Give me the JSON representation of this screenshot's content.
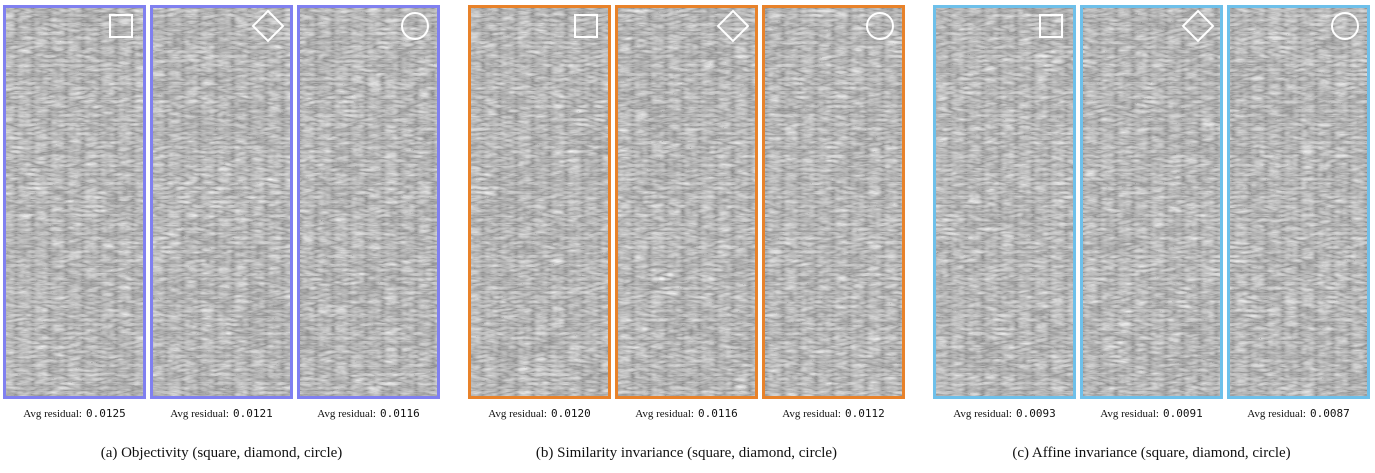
{
  "groups": [
    {
      "caption": "(a) Objectivity (square, diamond, circle)",
      "color": "#8080f0",
      "panels": [
        {
          "label": "Avg residual:",
          "value": "0.0125"
        },
        {
          "label": "Avg residual:",
          "value": "0.0121"
        },
        {
          "label": "Avg residual:",
          "value": "0.0116"
        }
      ]
    },
    {
      "caption": "(b) Similarity invariance (square, diamond, circle)",
      "color": "#e8822a",
      "panels": [
        {
          "label": "Avg residual:",
          "value": "0.0120"
        },
        {
          "label": "Avg residual:",
          "value": "0.0116"
        },
        {
          "label": "Avg residual:",
          "value": "0.0112"
        }
      ]
    },
    {
      "caption": "(c) Affine invariance (square, diamond, circle)",
      "color": "#6ec0ea",
      "panels": [
        {
          "label": "Avg residual:",
          "value": "0.0093"
        },
        {
          "label": "Avg residual:",
          "value": "0.0091"
        },
        {
          "label": "Avg residual:",
          "value": "0.0087"
        }
      ]
    }
  ]
}
